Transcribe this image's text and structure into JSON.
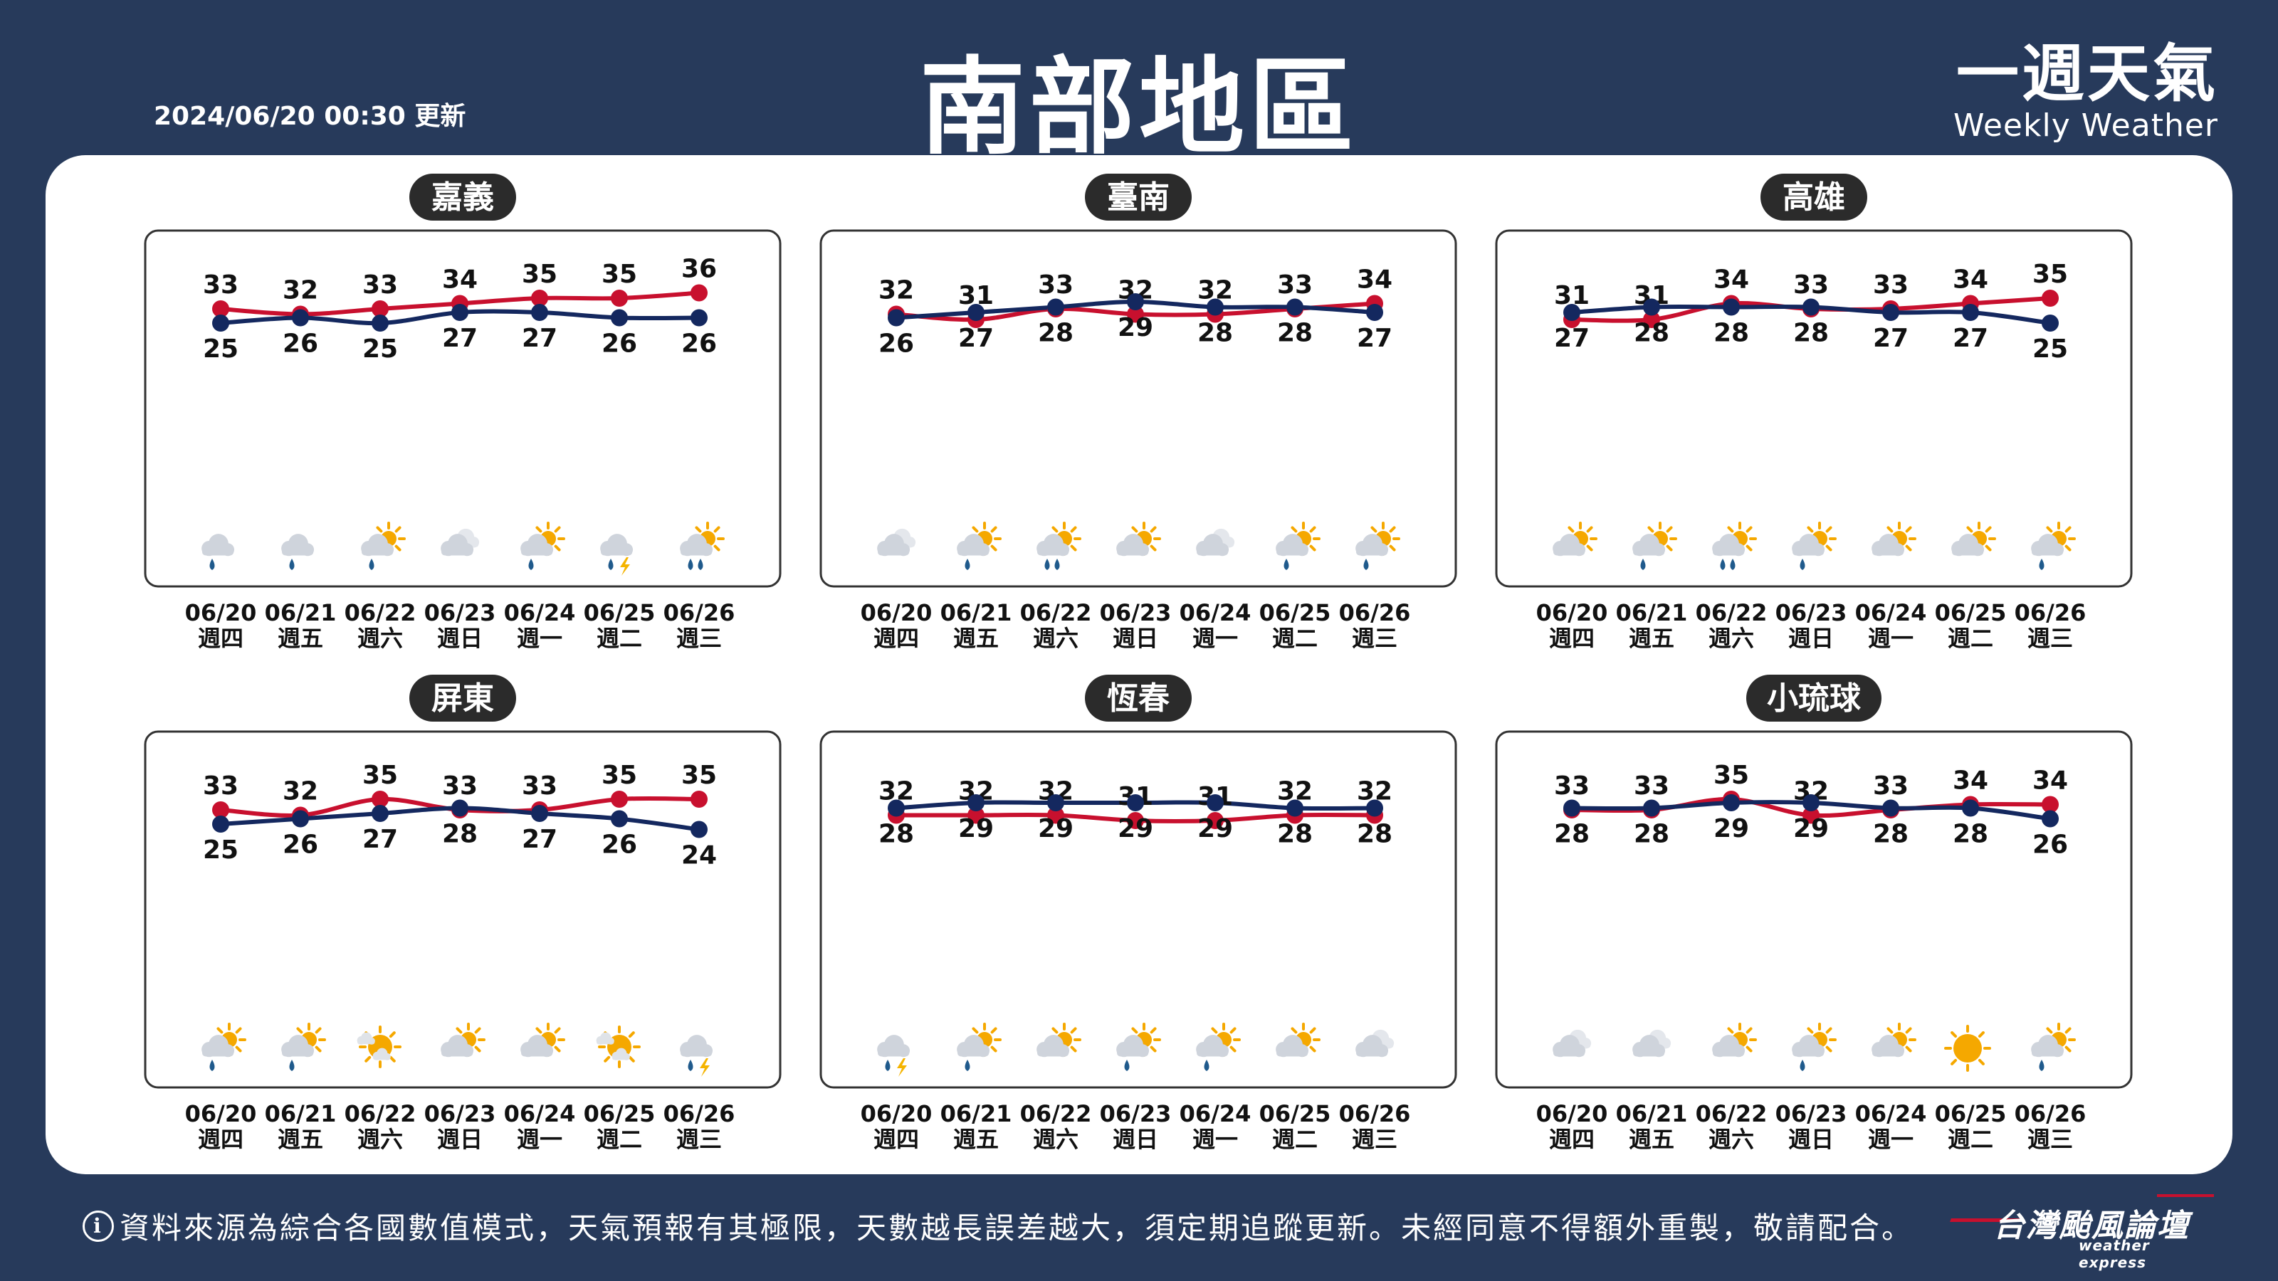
{
  "header": {
    "title": "南部地區",
    "update_time": "2024/06/20 00:30 更新",
    "brand_cn": "一週天氣",
    "brand_en": "Weekly Weather"
  },
  "footer": {
    "note": "資料來源為綜合各國數值模式，天氣預報有其極限，天數越長誤差越大，須定期追蹤更新。未經同意不得額外重製，敬請配合。",
    "info_icon": "i",
    "logo_cn": "台灣颱風論壇",
    "logo_en": "weather express"
  },
  "colors": {
    "background": "#273a5b",
    "high_line": "#c8102e",
    "low_line": "#14285f",
    "label_pill": "#2b2b2b",
    "chart_border": "#333333",
    "sun": "#f5a800",
    "cloud": "#cfd4dc",
    "rain": "#1f5a8c",
    "lightning": "#f5b400"
  },
  "chart_data": [
    {
      "type": "line",
      "title": "嘉義",
      "x": [
        "06/20",
        "06/21",
        "06/22",
        "06/23",
        "06/24",
        "06/25",
        "06/26"
      ],
      "weekdays": [
        "週四",
        "週五",
        "週六",
        "週日",
        "週一",
        "週二",
        "週三"
      ],
      "series": [
        {
          "name": "high",
          "values": [
            33,
            32,
            33,
            34,
            35,
            35,
            36
          ]
        },
        {
          "name": "low",
          "values": [
            25,
            26,
            25,
            27,
            27,
            26,
            26
          ]
        }
      ],
      "icons": [
        "cloud-rain",
        "cloud-rain",
        "partly-cloudy-rain",
        "cloudy",
        "partly-cloudy-rain",
        "cloud-rain-thunder",
        "partly-cloudy-heavy-rain"
      ]
    },
    {
      "type": "line",
      "title": "臺南",
      "x": [
        "06/20",
        "06/21",
        "06/22",
        "06/23",
        "06/24",
        "06/25",
        "06/26"
      ],
      "weekdays": [
        "週四",
        "週五",
        "週六",
        "週日",
        "週一",
        "週二",
        "週三"
      ],
      "series": [
        {
          "name": "high",
          "values": [
            32,
            31,
            33,
            32,
            32,
            33,
            34
          ]
        },
        {
          "name": "low",
          "values": [
            26,
            27,
            28,
            29,
            28,
            28,
            27
          ]
        }
      ],
      "icons": [
        "cloudy",
        "partly-cloudy-rain",
        "partly-cloudy-heavy-rain",
        "partly-cloudy",
        "cloudy",
        "partly-cloudy-rain",
        "partly-cloudy-rain"
      ]
    },
    {
      "type": "line",
      "title": "高雄",
      "x": [
        "06/20",
        "06/21",
        "06/22",
        "06/23",
        "06/24",
        "06/25",
        "06/26"
      ],
      "weekdays": [
        "週四",
        "週五",
        "週六",
        "週日",
        "週一",
        "週二",
        "週三"
      ],
      "series": [
        {
          "name": "high",
          "values": [
            31,
            31,
            34,
            33,
            33,
            34,
            35
          ]
        },
        {
          "name": "low",
          "values": [
            27,
            28,
            28,
            28,
            27,
            27,
            25
          ]
        }
      ],
      "icons": [
        "partly-cloudy",
        "partly-cloudy-rain",
        "partly-cloudy-heavy-rain",
        "partly-cloudy-rain",
        "partly-cloudy",
        "partly-cloudy",
        "partly-cloudy-rain"
      ]
    },
    {
      "type": "line",
      "title": "屏東",
      "x": [
        "06/20",
        "06/21",
        "06/22",
        "06/23",
        "06/24",
        "06/25",
        "06/26"
      ],
      "weekdays": [
        "週四",
        "週五",
        "週六",
        "週日",
        "週一",
        "週二",
        "週三"
      ],
      "series": [
        {
          "name": "high",
          "values": [
            33,
            32,
            35,
            33,
            33,
            35,
            35
          ]
        },
        {
          "name": "low",
          "values": [
            25,
            26,
            27,
            28,
            27,
            26,
            24
          ]
        }
      ],
      "icons": [
        "partly-cloudy-rain",
        "partly-cloudy-rain",
        "sunny-cloud",
        "partly-cloudy",
        "partly-cloudy",
        "sunny-cloud",
        "cloud-rain-thunder"
      ]
    },
    {
      "type": "line",
      "title": "恆春",
      "x": [
        "06/20",
        "06/21",
        "06/22",
        "06/23",
        "06/24",
        "06/25",
        "06/26"
      ],
      "weekdays": [
        "週四",
        "週五",
        "週六",
        "週日",
        "週一",
        "週二",
        "週三"
      ],
      "series": [
        {
          "name": "high",
          "values": [
            32,
            32,
            32,
            31,
            31,
            32,
            32
          ]
        },
        {
          "name": "low",
          "values": [
            28,
            29,
            29,
            29,
            29,
            28,
            28
          ]
        }
      ],
      "icons": [
        "cloud-rain-thunder",
        "partly-cloudy-rain",
        "partly-cloudy",
        "partly-cloudy-rain",
        "partly-cloudy-rain",
        "partly-cloudy",
        "cloudy"
      ]
    },
    {
      "type": "line",
      "title": "小琉球",
      "x": [
        "06/20",
        "06/21",
        "06/22",
        "06/23",
        "06/24",
        "06/25",
        "06/26"
      ],
      "weekdays": [
        "週四",
        "週五",
        "週六",
        "週日",
        "週一",
        "週二",
        "週三"
      ],
      "series": [
        {
          "name": "high",
          "values": [
            33,
            33,
            35,
            32,
            33,
            34,
            34
          ]
        },
        {
          "name": "low",
          "values": [
            28,
            28,
            29,
            29,
            28,
            28,
            26
          ]
        }
      ],
      "icons": [
        "cloudy",
        "cloudy",
        "partly-cloudy",
        "partly-cloudy-rain",
        "partly-cloudy",
        "sunny",
        "partly-cloudy-rain"
      ]
    }
  ]
}
